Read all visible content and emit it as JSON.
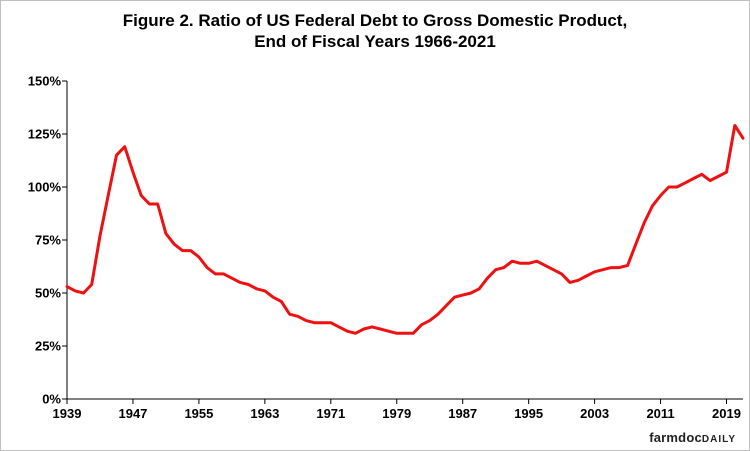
{
  "title_line1": "Figure 2.  Ratio of US Federal Debt to Gross Domestic Product,",
  "title_line2": "End of Fiscal Years 1966-2021",
  "brand": {
    "name": "farmdoc",
    "suffix": "DAILY"
  },
  "colors": {
    "line": "#ee1111",
    "axis": "#000000",
    "background": "#ffffff"
  },
  "chart_data": {
    "type": "line",
    "title": "Figure 2.  Ratio of US Federal Debt to Gross Domestic Product, End of Fiscal Years 1966-2021",
    "xlabel": "",
    "ylabel": "",
    "xlim": [
      1939,
      2021
    ],
    "ylim": [
      0,
      150
    ],
    "y_ticks": [
      0,
      25,
      50,
      75,
      100,
      125,
      150
    ],
    "y_tick_labels": [
      "0%",
      "25%",
      "50%",
      "75%",
      "100%",
      "125%",
      "150%"
    ],
    "x_tick_labels": [
      "1939",
      "1947",
      "1955",
      "1963",
      "1971",
      "1979",
      "1987",
      "1995",
      "2003",
      "2011",
      "2019"
    ],
    "x_ticks": [
      1939,
      1947,
      1955,
      1963,
      1971,
      1979,
      1987,
      1995,
      2003,
      2011,
      2019
    ],
    "grid": false,
    "series": [
      {
        "x": [
          1939,
          1940,
          1941,
          1942,
          1943,
          1944,
          1945,
          1946,
          1947,
          1948,
          1949,
          1950,
          1951,
          1952,
          1953,
          1954,
          1955,
          1956,
          1957,
          1958,
          1959,
          1960,
          1961,
          1962,
          1963,
          1964,
          1965,
          1966,
          1967,
          1968,
          1969,
          1970,
          1971,
          1972,
          1973,
          1974,
          1975,
          1976,
          1977,
          1978,
          1979,
          1980,
          1981,
          1982,
          1983,
          1984,
          1985,
          1986,
          1987,
          1988,
          1989,
          1990,
          1991,
          1992,
          1993,
          1994,
          1995,
          1996,
          1997,
          1998,
          1999,
          2000,
          2001,
          2002,
          2003,
          2004,
          2005,
          2006,
          2007,
          2008,
          2009,
          2010,
          2011,
          2012,
          2013,
          2014,
          2015,
          2016,
          2017,
          2018,
          2019,
          2020,
          2021
        ],
        "values": [
          53,
          51,
          50,
          54,
          77,
          96,
          115,
          119,
          107,
          96,
          92,
          92,
          78,
          73,
          70,
          70,
          67,
          62,
          59,
          59,
          57,
          55,
          54,
          52,
          51,
          48,
          46,
          40,
          39,
          37,
          36,
          36,
          36,
          34,
          32,
          31,
          33,
          34,
          33,
          32,
          31,
          31,
          31,
          35,
          37,
          40,
          44,
          48,
          49,
          50,
          52,
          57,
          61,
          62,
          65,
          64,
          64,
          65,
          63,
          61,
          59,
          55,
          56,
          58,
          60,
          61,
          62,
          62,
          63,
          73,
          83,
          91,
          96,
          100,
          100,
          102,
          104,
          106,
          103,
          105,
          107,
          129,
          123
        ]
      }
    ]
  }
}
